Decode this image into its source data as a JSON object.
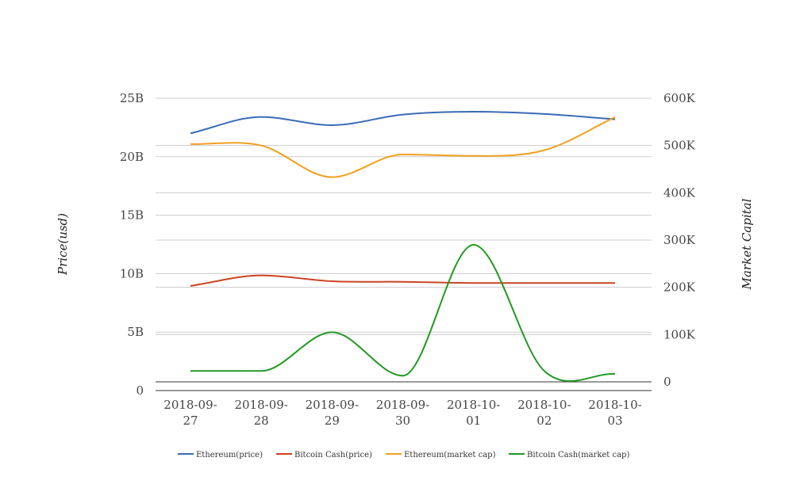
{
  "chart_data": {
    "type": "line",
    "x": [
      "2018-09-27",
      "2018-09-28",
      "2018-09-29",
      "2018-09-30",
      "2018-10-01",
      "2018-10-02",
      "2018-10-03"
    ],
    "ylabel_left": "Price(usd)",
    "ylabel_right": "Market Capital",
    "y_left": {
      "ticks": [
        "0",
        "5B",
        "10B",
        "15B",
        "20B",
        "25B"
      ],
      "range": [
        0,
        25000000000
      ]
    },
    "y_right": {
      "ticks": [
        "0",
        "100K",
        "200K",
        "300K",
        "400K",
        "500K",
        "600K"
      ],
      "range": [
        0,
        600000
      ]
    },
    "grid": true,
    "legend_position": "bottom",
    "series": [
      {
        "name": "Ethereum(price)",
        "color": "#3a6bb5",
        "axis": "left",
        "values": [
          22000000000,
          23400000000,
          22700000000,
          23600000000,
          23850000000,
          23650000000,
          23200000000
        ]
      },
      {
        "name": "Bitcoin Cash(price)",
        "color": "#cc4422",
        "axis": "left",
        "values": [
          8950000000,
          9850000000,
          9350000000,
          9300000000,
          9200000000,
          9200000000,
          9200000000
        ]
      },
      {
        "name": "Ethereum(market cap)",
        "color": "#f0a020",
        "axis": "right",
        "values": [
          503000,
          500000,
          433000,
          481000,
          478000,
          490000,
          560000
        ]
      },
      {
        "name": "Bitcoin Cash(market cap)",
        "color": "#229922",
        "axis": "right",
        "values": [
          23000,
          23000,
          105000,
          13000,
          290000,
          23000,
          17000
        ]
      }
    ]
  }
}
